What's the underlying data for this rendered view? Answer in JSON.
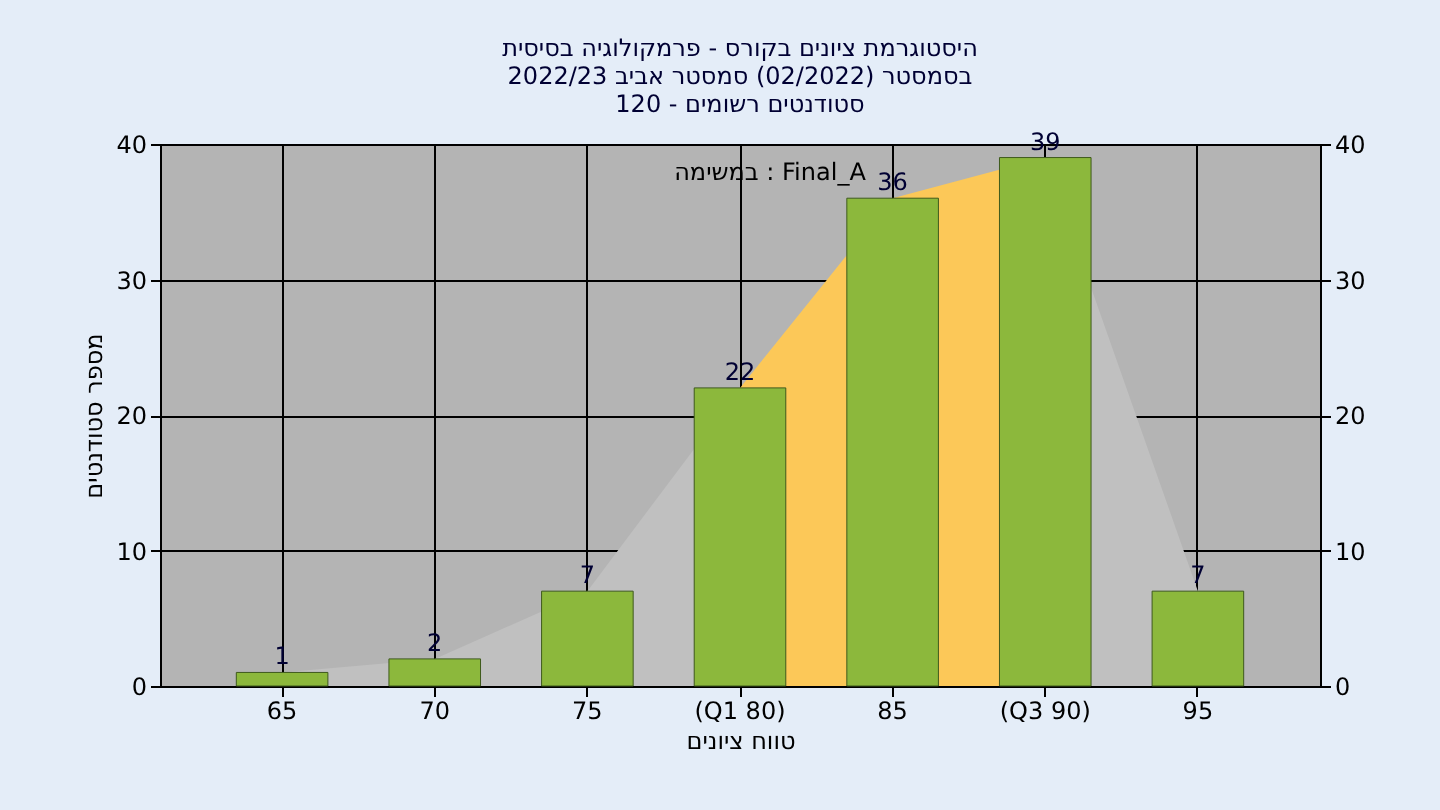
{
  "chart_data": {
    "type": "bar",
    "title": [
      "היסטוגרמת ציונים בקורס - פרמקולוגיה בסיסית",
      "בסמסטר  (02/2022)  סמסטר אביב 2022/23",
      "סטודנטים רשומים - 120"
    ],
    "xlabel": "טווח ציונים",
    "ylabel": "מספר סטודנטים",
    "categories": [
      "65",
      "70",
      "75",
      "(Q1 80)",
      "85",
      "(Q3 90)",
      "95"
    ],
    "series": [
      {
        "type": "area",
        "color": "#c0c0c0",
        "values": [
          1,
          2,
          7,
          22,
          null,
          39,
          7
        ]
      },
      {
        "type": "area",
        "color": "#fcc858",
        "values": [
          null,
          null,
          null,
          22,
          36,
          39,
          null
        ]
      },
      {
        "color": "#8cb83c",
        "values": [
          1,
          2,
          7,
          22,
          36,
          39,
          7
        ],
        "data_labels": true
      }
    ],
    "annotations": [
      "במשימה : Final_A"
    ],
    "ylim": [
      0,
      40
    ],
    "yticks": [
      0,
      10,
      20,
      30,
      40
    ],
    "y2lim": [
      0,
      40
    ],
    "y2ticks": [
      0,
      10,
      20,
      30,
      40
    ],
    "grid": true
  }
}
